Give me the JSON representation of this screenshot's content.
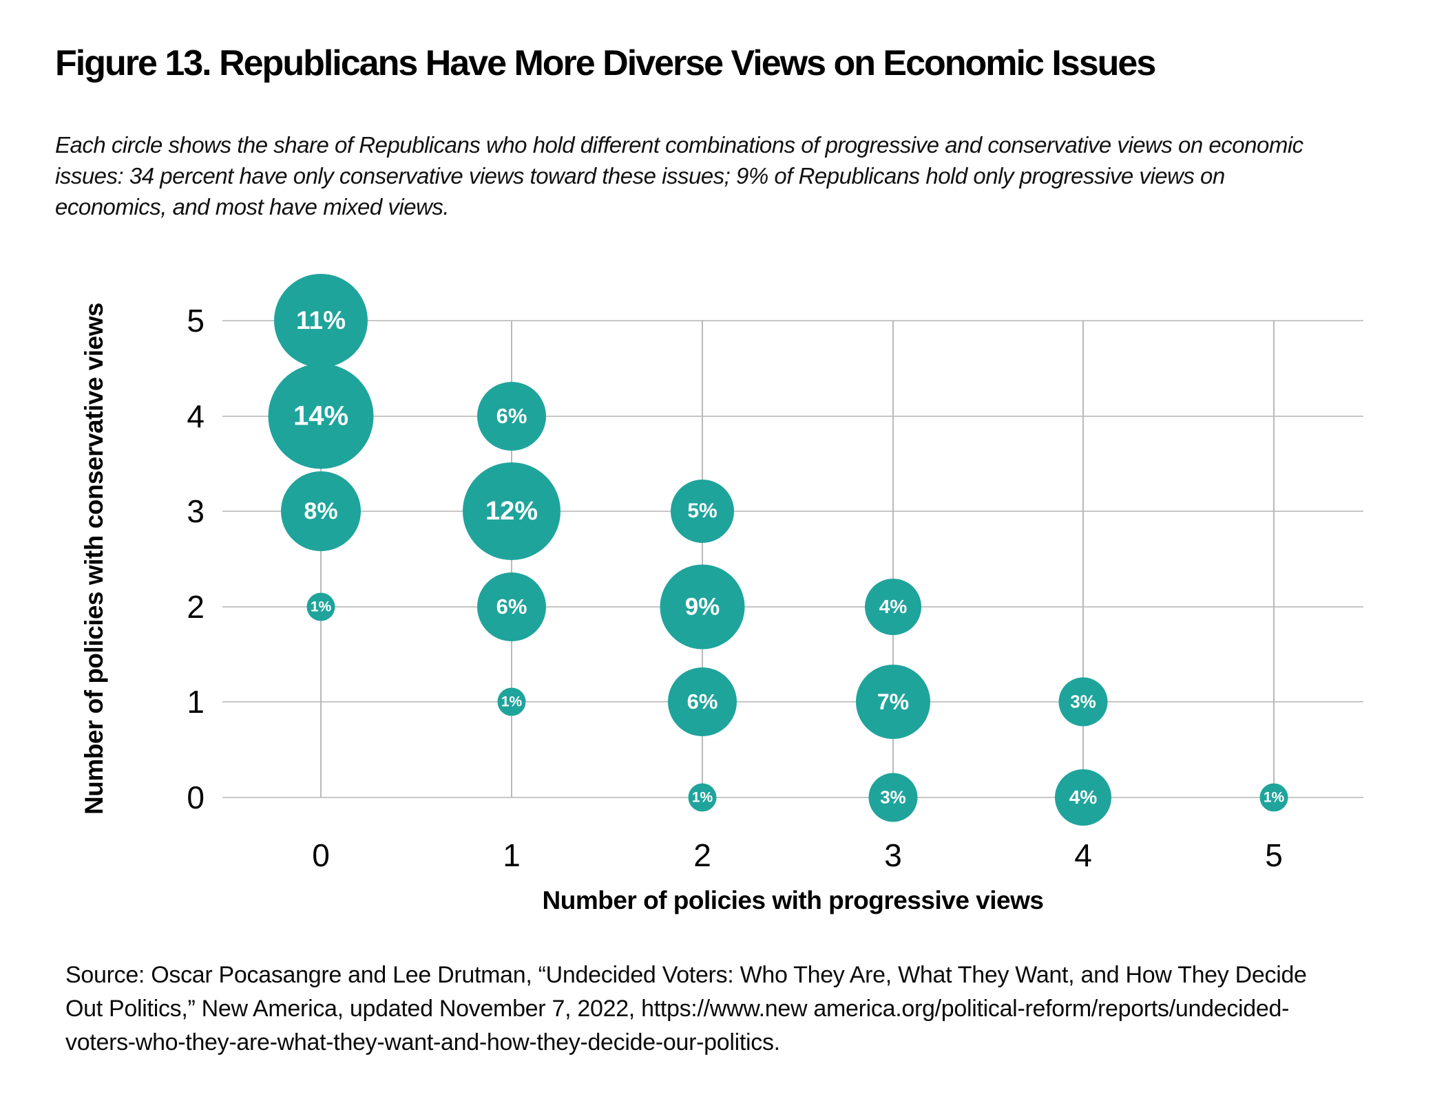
{
  "figure": {
    "title": "Figure 13. Republicans Have More Diverse Views on Economic Issues",
    "subtitle_lines": [
      "Each circle shows the share of Republicans who hold different combinations of progressive and conservative views on economic",
      "issues: 34 percent have only conservative views toward these issues; 9% of Republicans hold only progressive views on",
      "economics, and most have mixed views."
    ],
    "source_lines": [
      "Source: Oscar Pocasangre and Lee Drutman, “Undecided Voters: Who They Are, What They Want, and How They Decide",
      "Out Politics,” New America, updated November 7, 2022, https://www.new america.org/political-reform/reports/undecided-",
      "voters-who-they-are-what-they-want-and-how-they-decide-our-politics."
    ]
  },
  "chart_data": {
    "type": "scatter",
    "subtype": "bubble",
    "title": "",
    "xlabel": "Number of policies with progressive views",
    "ylabel": "Number of policies with conservative views",
    "x_ticks": [
      "0",
      "1",
      "2",
      "3",
      "4",
      "5"
    ],
    "y_ticks": [
      "5",
      "4",
      "3",
      "2",
      "1",
      "0"
    ],
    "xlim": [
      0,
      5
    ],
    "ylim": [
      0,
      5
    ],
    "grid": true,
    "legend": false,
    "bubble_color": "#1FA49C",
    "bubble_label_color": "#ffffff",
    "gridline_color": "#c6c6c6",
    "size_encoding": "area proportional to percent value",
    "points": [
      {
        "x": 0,
        "y": 5,
        "value": 11,
        "label": "11%"
      },
      {
        "x": 0,
        "y": 4,
        "value": 14,
        "label": "14%"
      },
      {
        "x": 0,
        "y": 3,
        "value": 8,
        "label": "8%"
      },
      {
        "x": 0,
        "y": 2,
        "value": 1,
        "label": "1%"
      },
      {
        "x": 1,
        "y": 4,
        "value": 6,
        "label": "6%"
      },
      {
        "x": 1,
        "y": 3,
        "value": 12,
        "label": "12%"
      },
      {
        "x": 1,
        "y": 2,
        "value": 6,
        "label": "6%"
      },
      {
        "x": 1,
        "y": 1,
        "value": 1,
        "label": "1%"
      },
      {
        "x": 2,
        "y": 3,
        "value": 5,
        "label": "5%"
      },
      {
        "x": 2,
        "y": 2,
        "value": 9,
        "label": "9%"
      },
      {
        "x": 2,
        "y": 1,
        "value": 6,
        "label": "6%"
      },
      {
        "x": 2,
        "y": 0,
        "value": 1,
        "label": "1%"
      },
      {
        "x": 3,
        "y": 2,
        "value": 4,
        "label": "4%"
      },
      {
        "x": 3,
        "y": 1,
        "value": 7,
        "label": "7%"
      },
      {
        "x": 3,
        "y": 0,
        "value": 3,
        "label": "3%"
      },
      {
        "x": 4,
        "y": 1,
        "value": 3,
        "label": "3%"
      },
      {
        "x": 4,
        "y": 0,
        "value": 4,
        "label": "4%"
      },
      {
        "x": 5,
        "y": 0,
        "value": 1,
        "label": "1%"
      }
    ]
  }
}
